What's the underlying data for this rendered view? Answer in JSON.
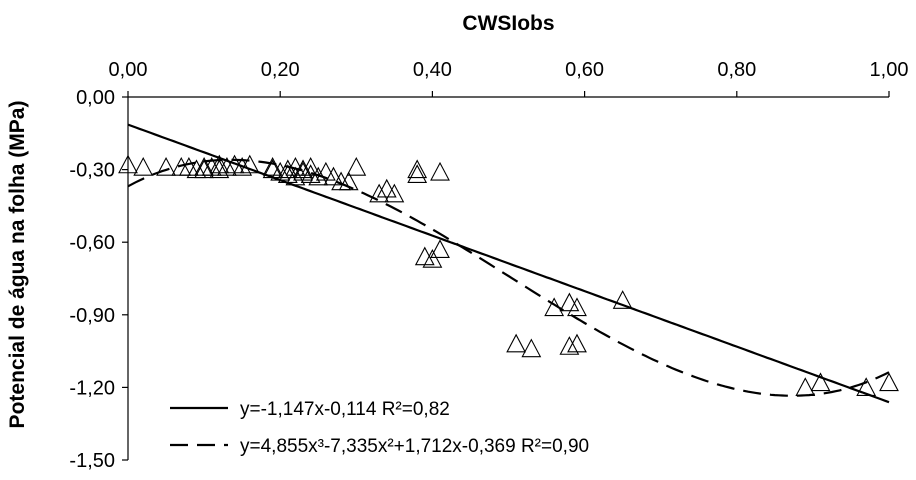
{
  "chart_data": {
    "type": "scatter",
    "xlabel": "CWSIobs",
    "ylabel": "Potencial de água na folha (MPa)",
    "xlim": [
      0,
      1
    ],
    "ylim": [
      -1.5,
      0
    ],
    "x_ticks": [
      "0,00",
      "0,20",
      "0,40",
      "0,60",
      "0,80",
      "1,00"
    ],
    "y_ticks": [
      "0,00",
      "-0,30",
      "-0,60",
      "-0,90",
      "-1,20",
      "-1,50"
    ],
    "x_axis_position": "top",
    "grid": false,
    "legend_position": "bottom-left",
    "series": [
      {
        "marker": "triangle-open",
        "x": [
          0.0,
          0.02,
          0.05,
          0.07,
          0.08,
          0.09,
          0.1,
          0.1,
          0.11,
          0.12,
          0.12,
          0.13,
          0.14,
          0.15,
          0.16,
          0.19,
          0.19,
          0.2,
          0.21,
          0.21,
          0.22,
          0.22,
          0.23,
          0.23,
          0.24,
          0.24,
          0.25,
          0.26,
          0.27,
          0.28,
          0.29,
          0.3,
          0.33,
          0.34,
          0.35,
          0.38,
          0.38,
          0.39,
          0.4,
          0.41,
          0.41,
          0.51,
          0.53,
          0.56,
          0.58,
          0.58,
          0.59,
          0.59,
          0.65,
          0.89,
          0.91,
          0.97,
          1.0
        ],
        "y": [
          -0.28,
          -0.29,
          -0.29,
          -0.29,
          -0.29,
          -0.3,
          -0.29,
          -0.3,
          -0.29,
          -0.28,
          -0.3,
          -0.29,
          -0.28,
          -0.29,
          -0.28,
          -0.3,
          -0.29,
          -0.31,
          -0.3,
          -0.32,
          -0.33,
          -0.29,
          -0.31,
          -0.3,
          -0.29,
          -0.32,
          -0.33,
          -0.31,
          -0.33,
          -0.35,
          -0.35,
          -0.29,
          -0.4,
          -0.38,
          -0.4,
          -0.3,
          -0.32,
          -0.66,
          -0.67,
          -0.63,
          -0.31,
          -1.02,
          -1.04,
          -0.87,
          -0.85,
          -1.03,
          -1.02,
          -0.87,
          -0.84,
          -1.2,
          -1.18,
          -1.2,
          -1.18
        ]
      }
    ],
    "fits": [
      {
        "label": "y=-1,147x-0,114 R²=0,82",
        "style": "solid",
        "coefficients": [
          -0.114,
          -1.147
        ],
        "x_range": [
          0,
          1
        ]
      },
      {
        "label": "y=4,855x³-7,335x²+1,712x-0,369  R²=0,90",
        "style": "dashed",
        "coefficients": [
          -0.369,
          1.712,
          -7.335,
          4.855
        ],
        "x_range": [
          0,
          1
        ]
      }
    ]
  }
}
